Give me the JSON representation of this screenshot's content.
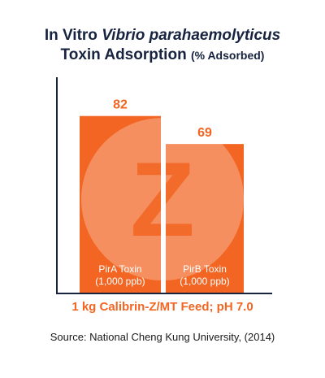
{
  "chart_data": {
    "type": "bar",
    "title_prefix": "In Vitro ",
    "title_italic": "Vibrio parahaemolyticus",
    "title_line2": "Toxin Adsorption",
    "title_unit": "(% Adsorbed)",
    "categories": [
      "PirA Toxin",
      "PirB Toxin"
    ],
    "category_sublabels": [
      "(1,000 ppb)",
      "(1,000 ppb)"
    ],
    "values": [
      82,
      69
    ],
    "value_labels": [
      "82",
      "69"
    ],
    "ylim": [
      0,
      100
    ],
    "xlabel": "1 kg Calibrin-Z/MT Feed; pH 7.0",
    "grid": false,
    "legend": "none",
    "watermark_letter": "Z"
  },
  "source": "Source: National Cheng Kung University, (2014)",
  "colors": {
    "bar": "#f26522",
    "title": "#17233f",
    "axis": "#17233f",
    "xlabel": "#f26522",
    "watermark": "#ffffff"
  }
}
